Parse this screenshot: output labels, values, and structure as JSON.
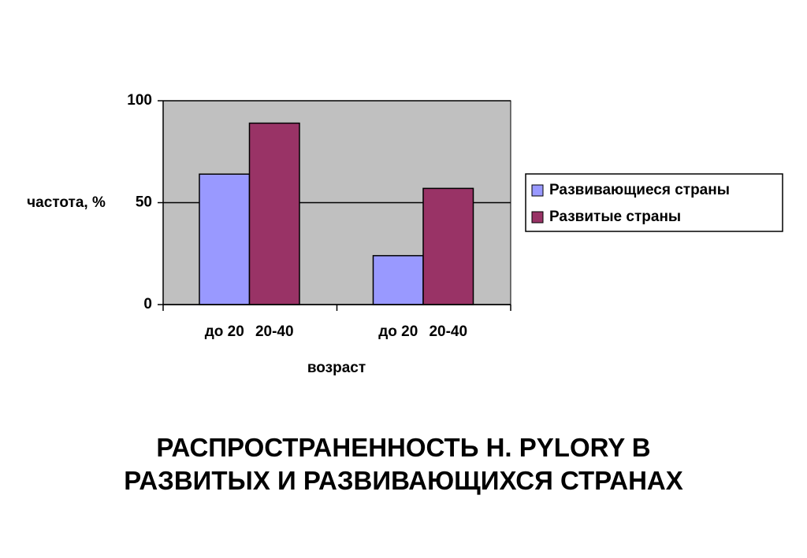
{
  "chart_data": {
    "type": "bar",
    "title": "РАСПРОСТРАНЕННОСТЬ H. PYLORY В РАЗВИТЫХ И РАЗВИВАЮЩИХСЯ СТРАНАХ",
    "x_label": "возраст",
    "y_label": "частота, %",
    "categories": [
      "до 20",
      "20-40",
      "до 20",
      "20-40"
    ],
    "series": [
      {
        "name": "Развивающиеся страны",
        "color": "#9999ff",
        "values": [
          64,
          null,
          24,
          null
        ]
      },
      {
        "name": "Развитые страны",
        "color": "#993366",
        "values": [
          null,
          89,
          null,
          57
        ]
      }
    ],
    "ylim": [
      0,
      100
    ],
    "yticks": [
      0,
      50,
      100
    ],
    "grid": true,
    "legend": "right"
  }
}
